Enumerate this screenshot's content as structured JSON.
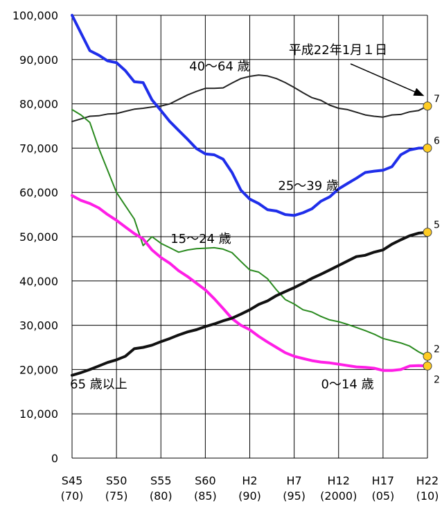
{
  "chart_data": {
    "type": "line",
    "title": "",
    "xlabel": "",
    "ylabel": "",
    "ylim": [
      0,
      100000
    ],
    "xlim": [
      1970,
      2010
    ],
    "grid": true,
    "y_ticks": [
      "0",
      "10,000",
      "20,000",
      "30,000",
      "40,000",
      "50,000",
      "60,000",
      "70,000",
      "80,000",
      "90,000",
      "100,000"
    ],
    "x_ticks": [
      {
        "x": 1970,
        "top": "S45",
        "bottom": "(70)"
      },
      {
        "x": 1975,
        "top": "S50",
        "bottom": "(75)"
      },
      {
        "x": 1980,
        "top": "S55",
        "bottom": "(80)"
      },
      {
        "x": 1985,
        "top": "S60",
        "bottom": "(85)"
      },
      {
        "x": 1990,
        "top": "H2",
        "bottom": "(90)"
      },
      {
        "x": 1995,
        "top": "H7",
        "bottom": "(95)"
      },
      {
        "x": 2000,
        "top": "H12",
        "bottom": "(2000)"
      },
      {
        "x": 2005,
        "top": "H17",
        "bottom": "(05)"
      },
      {
        "x": 2010,
        "top": "H22",
        "bottom": "(10)"
      }
    ],
    "series": [
      {
        "name": "40～64 歳",
        "color": "#222222",
        "width": 2,
        "end_label": "7",
        "x": [
          1970,
          1971,
          1972,
          1973,
          1974,
          1975,
          1976,
          1977,
          1978,
          1979,
          1980,
          1981,
          1982,
          1983,
          1984,
          1985,
          1986,
          1987,
          1988,
          1989,
          1990,
          1991,
          1992,
          1993,
          1994,
          1995,
          1996,
          1997,
          1998,
          1999,
          2000,
          2001,
          2002,
          2003,
          2004,
          2005,
          2006,
          2007,
          2008,
          2009,
          2010
        ],
        "values": [
          76000,
          76600,
          77200,
          77300,
          77700,
          77800,
          78300,
          78800,
          79000,
          79300,
          79500,
          80000,
          81000,
          82000,
          82800,
          83500,
          83500,
          83600,
          84700,
          85700,
          86200,
          86500,
          86300,
          85700,
          84800,
          83700,
          82500,
          81400,
          80800,
          79700,
          79000,
          78700,
          78100,
          77500,
          77200,
          77000,
          77500,
          77600,
          78200,
          78500,
          79500
        ]
      },
      {
        "name": "25～39 歳",
        "color": "#1f2eea",
        "width": 4,
        "end_label": "6",
        "x": [
          1970,
          1971,
          1972,
          1973,
          1974,
          1975,
          1976,
          1977,
          1978,
          1979,
          1980,
          1981,
          1982,
          1983,
          1984,
          1985,
          1986,
          1987,
          1988,
          1989,
          1990,
          1991,
          1992,
          1993,
          1994,
          1995,
          1996,
          1997,
          1998,
          1999,
          2000,
          2001,
          2002,
          2003,
          2004,
          2005,
          2006,
          2007,
          2008,
          2009,
          2010
        ],
        "values": [
          100000,
          96000,
          92000,
          91000,
          89700,
          89300,
          87500,
          85000,
          84800,
          80900,
          78500,
          76000,
          74000,
          72000,
          69900,
          68700,
          68500,
          67500,
          64500,
          60500,
          58500,
          57500,
          56100,
          55800,
          55000,
          54800,
          55400,
          56300,
          58000,
          59000,
          60800,
          62000,
          63200,
          64500,
          64800,
          65000,
          65800,
          68500,
          69600,
          70000,
          70000
        ]
      },
      {
        "name": "15～24 歳",
        "color": "#2a8a1f",
        "width": 2,
        "end_label": "2",
        "x": [
          1970,
          1971,
          1972,
          1973,
          1974,
          1975,
          1976,
          1977,
          1978,
          1979,
          1980,
          1981,
          1982,
          1983,
          1984,
          1985,
          1986,
          1987,
          1988,
          1989,
          1990,
          1991,
          1992,
          1993,
          1994,
          1995,
          1996,
          1997,
          1998,
          1999,
          2000,
          2001,
          2002,
          2003,
          2004,
          2005,
          2006,
          2007,
          2008,
          2009,
          2010
        ],
        "values": [
          78700,
          77500,
          75800,
          70000,
          65000,
          60000,
          57000,
          54000,
          48000,
          50000,
          48500,
          47500,
          46500,
          47000,
          47300,
          47400,
          47500,
          47200,
          46400,
          44400,
          42500,
          42000,
          40500,
          38000,
          35800,
          34800,
          33500,
          33000,
          32000,
          31200,
          30800,
          30200,
          29500,
          28800,
          28000,
          27000,
          26500,
          26000,
          25300,
          24000,
          23000
        ]
      },
      {
        "name": "0～14 歳",
        "color": "#ff1ee6",
        "width": 4,
        "end_label": "2",
        "x": [
          1970,
          1971,
          1972,
          1973,
          1974,
          1975,
          1976,
          1977,
          1978,
          1979,
          1980,
          1981,
          1982,
          1983,
          1984,
          1985,
          1986,
          1987,
          1988,
          1989,
          1990,
          1991,
          1992,
          1993,
          1994,
          1995,
          1996,
          1997,
          1998,
          1999,
          2000,
          2001,
          2002,
          2003,
          2004,
          2005,
          2006,
          2007,
          2008,
          2009,
          2010
        ],
        "values": [
          59300,
          58200,
          57500,
          56500,
          55000,
          53700,
          52200,
          50700,
          49500,
          47000,
          45300,
          44000,
          42300,
          41000,
          39500,
          38000,
          36000,
          33800,
          31500,
          30000,
          29000,
          27500,
          26200,
          25000,
          23800,
          23000,
          22500,
          22000,
          21700,
          21500,
          21200,
          20900,
          20600,
          20500,
          20300,
          19800,
          19800,
          20000,
          20800,
          20900,
          20800
        ]
      },
      {
        "name": "65 歳以上",
        "color": "#111111",
        "width": 4,
        "end_label": "5",
        "x": [
          1970,
          1971,
          1972,
          1973,
          1974,
          1975,
          1976,
          1977,
          1978,
          1979,
          1980,
          1981,
          1982,
          1983,
          1984,
          1985,
          1986,
          1987,
          1988,
          1989,
          1990,
          1991,
          1992,
          1993,
          1994,
          1995,
          1996,
          1997,
          1998,
          1999,
          2000,
          2001,
          2002,
          2003,
          2004,
          2005,
          2006,
          2007,
          2008,
          2009,
          2010
        ],
        "values": [
          18700,
          19300,
          20000,
          20800,
          21600,
          22200,
          23000,
          24700,
          25000,
          25500,
          26300,
          27000,
          27800,
          28500,
          29000,
          29700,
          30300,
          31000,
          31600,
          32500,
          33500,
          34700,
          35500,
          36700,
          37600,
          38500,
          39500,
          40600,
          41500,
          42500,
          43500,
          44500,
          45500,
          45800,
          46500,
          47000,
          48300,
          49300,
          50200,
          50800,
          51000
        ]
      }
    ],
    "annotations": [
      {
        "text": "平成22年1月１日",
        "anchor_x": 2010,
        "anchor_y": 80000
      },
      {
        "text": "40～64 歳",
        "x": 1986.6,
        "y": 88500
      },
      {
        "text": "25～39 歳",
        "x": 1996.6,
        "y": 61500
      },
      {
        "text": "15～24 歳",
        "x": 1984.5,
        "y": 49500
      },
      {
        "text": "65 歳以上",
        "x": 1973.0,
        "y": 16700
      },
      {
        "text": "0～14 歳",
        "x": 2001.0,
        "y": 16700
      }
    ],
    "end_markers": [
      {
        "series": "40～64 歳",
        "value": 79500,
        "label": "7"
      },
      {
        "series": "25～39 歳",
        "value": 70000,
        "label": "6"
      },
      {
        "series": "65 歳以上",
        "value": 51000,
        "label": "5"
      },
      {
        "series": "15～24 歳",
        "value": 23000,
        "label": "2"
      },
      {
        "series": "0～14 歳",
        "value": 20800,
        "label": "2"
      }
    ],
    "marker_color": "#ffcc22"
  }
}
